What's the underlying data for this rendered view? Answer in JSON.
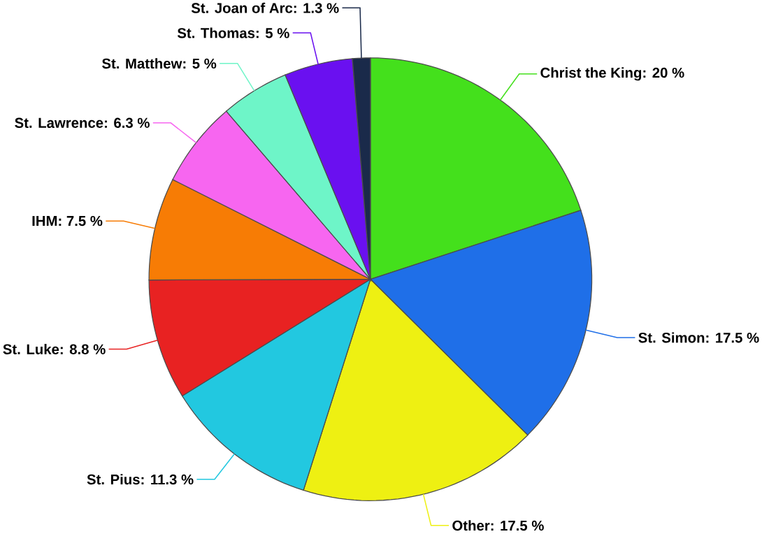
{
  "chart_data": {
    "type": "pie",
    "categories": [
      "Christ the King",
      "St. Simon",
      "Other",
      "St. Pius",
      "St. Luke",
      "IHM",
      "St. Lawrence",
      "St. Matthew",
      "St. Thomas",
      "St. Joan of Arc"
    ],
    "values": [
      20,
      17.5,
      17.5,
      11.3,
      8.8,
      7.5,
      6.3,
      5,
      5,
      1.3
    ],
    "value_labels": [
      ": 20 %",
      ": 17.5 %",
      ": 17.5 %",
      ": 11.3 %",
      ": 8.8 %",
      ": 7.5 %",
      ": 6.3 %",
      ": 5 %",
      ": 5 %",
      ": 1.3 %"
    ],
    "colors": [
      "#44e01c",
      "#1f6fe8",
      "#eef012",
      "#22c8e0",
      "#e82222",
      "#f77c05",
      "#f766f0",
      "#6ef5c8",
      "#6a10f0",
      "#1a2a4a"
    ]
  }
}
